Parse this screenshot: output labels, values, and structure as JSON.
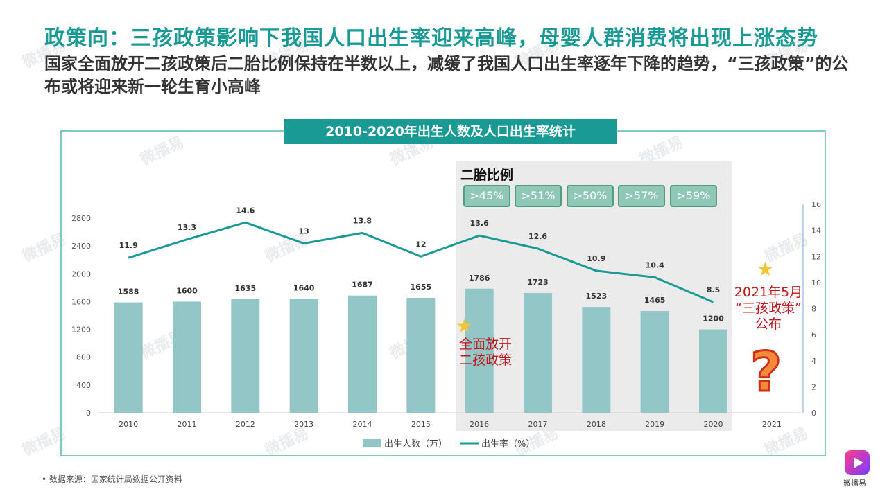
{
  "page": {
    "title": "政策向：三孩政策影响下我国人口出生率迎来高峰，母婴人群消费将出现上涨态势",
    "subtitle": "国家全面放开二孩政策后二胎比例保持在半数以上，减缓了我国人口出生率逐年下降的趋势，“三孩政策”的公布或将迎来新一轮生育小高峰",
    "source": "• 数据来源：国家统计局数据公开资料",
    "logo_text": "微播易",
    "watermark": "微播易"
  },
  "second_child": {
    "title": "二胎比例",
    "badges": [
      ">45%",
      ">51%",
      ">50%",
      ">57%",
      ">59%"
    ]
  },
  "annotations": {
    "policy_2016_line1": "全面放开",
    "policy_2016_line2": "二孩政策",
    "policy_2021_line1": "2021年5月",
    "policy_2021_line2": "“三孩政策”",
    "policy_2021_line3": "公布",
    "question": "?"
  },
  "colors": {
    "accent": "#1a9a95",
    "bar": "#93c6c6",
    "line": "#1a9a95",
    "highlight": "#c0161c"
  },
  "chart_data": {
    "type": "bar",
    "title": "2010-2020年出生人数及人口出生率统计",
    "categories": [
      "2010",
      "2011",
      "2012",
      "2013",
      "2014",
      "2015",
      "2016",
      "2017",
      "2018",
      "2019",
      "2020",
      "2021"
    ],
    "series": [
      {
        "name": "出生人数（万）",
        "type": "bar",
        "axis": "left",
        "values": [
          1588,
          1600,
          1635,
          1640,
          1687,
          1655,
          1786,
          1723,
          1523,
          1465,
          1200,
          null
        ]
      },
      {
        "name": "出生率（%）",
        "type": "line",
        "axis": "right",
        "values": [
          11.9,
          13.3,
          14.6,
          13,
          13.8,
          12,
          13.6,
          12.6,
          10.9,
          10.4,
          8.5,
          null
        ]
      }
    ],
    "ylim_left": [
      0,
      2800
    ],
    "yticks_left": [
      0,
      400,
      800,
      1200,
      1600,
      2000,
      2400,
      2800
    ],
    "ylim_right": [
      0,
      16
    ],
    "yticks_right": [
      0,
      2,
      4,
      6,
      8,
      10,
      12,
      14,
      16
    ],
    "legend": "bottom",
    "grid": false
  }
}
